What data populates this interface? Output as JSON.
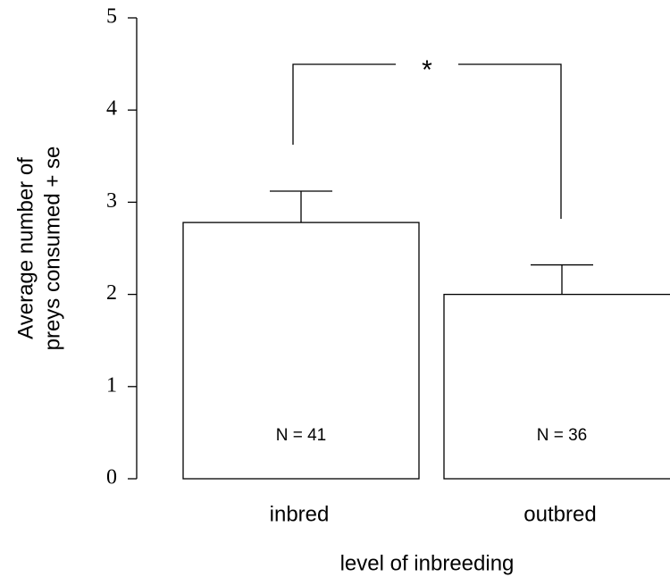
{
  "chart_data": {
    "type": "bar",
    "categories": [
      "inbred",
      "outbred"
    ],
    "values": [
      2.78,
      2.0
    ],
    "errors": [
      0.34,
      0.32
    ],
    "bar_labels": [
      "N = 41",
      "N = 36"
    ],
    "color": "#ffffff",
    "xlabel": "level of inbreeding",
    "ylabel": [
      "Average number of",
      "preys consumed + se"
    ],
    "annotation": "*",
    "ylim": [
      0,
      5
    ],
    "yticks": [
      0,
      1,
      2,
      3,
      4,
      5
    ],
    "grid": false
  }
}
